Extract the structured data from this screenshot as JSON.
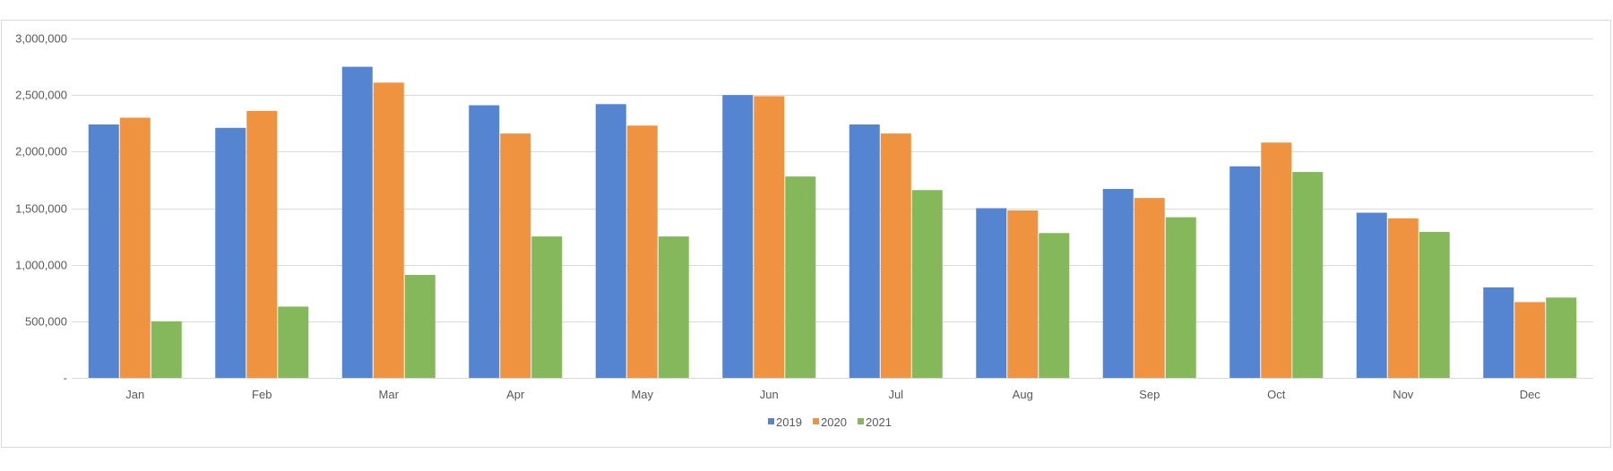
{
  "chart_data": {
    "type": "bar",
    "title": "",
    "xlabel": "",
    "ylabel": "",
    "categories": [
      "Jan",
      "Feb",
      "Mar",
      "Apr",
      "May",
      "Jun",
      "Jul",
      "Aug",
      "Sep",
      "Oct",
      "Nov",
      "Dec"
    ],
    "series": [
      {
        "name": "2019",
        "color": "#5585d1",
        "values": [
          2240000,
          2210000,
          2750000,
          2410000,
          2420000,
          2500000,
          2240000,
          1500000,
          1670000,
          1870000,
          1460000,
          800000
        ]
      },
      {
        "name": "2020",
        "color": "#f09341",
        "values": [
          2300000,
          2360000,
          2610000,
          2160000,
          2230000,
          2490000,
          2160000,
          1480000,
          1590000,
          2080000,
          1410000,
          670000
        ]
      },
      {
        "name": "2021",
        "color": "#84b85a",
        "values": [
          500000,
          630000,
          910000,
          1250000,
          1250000,
          1780000,
          1660000,
          1280000,
          1420000,
          1820000,
          1290000,
          710000
        ]
      }
    ],
    "ylim": [
      0,
      3000000
    ],
    "yticks": [
      0,
      500000,
      1000000,
      1500000,
      2000000,
      2500000,
      3000000
    ],
    "ytick_labels": [
      "-",
      "500,000",
      "1,000,000",
      "1,500,000",
      "2,000,000",
      "2,500,000",
      "3,000,000"
    ],
    "grid": true,
    "legend_position": "bottom",
    "colors": {
      "gridline": "#d9d9d9",
      "axis": "#d9d9d9",
      "text": "#595959",
      "frame": "#d9d9d9"
    }
  }
}
